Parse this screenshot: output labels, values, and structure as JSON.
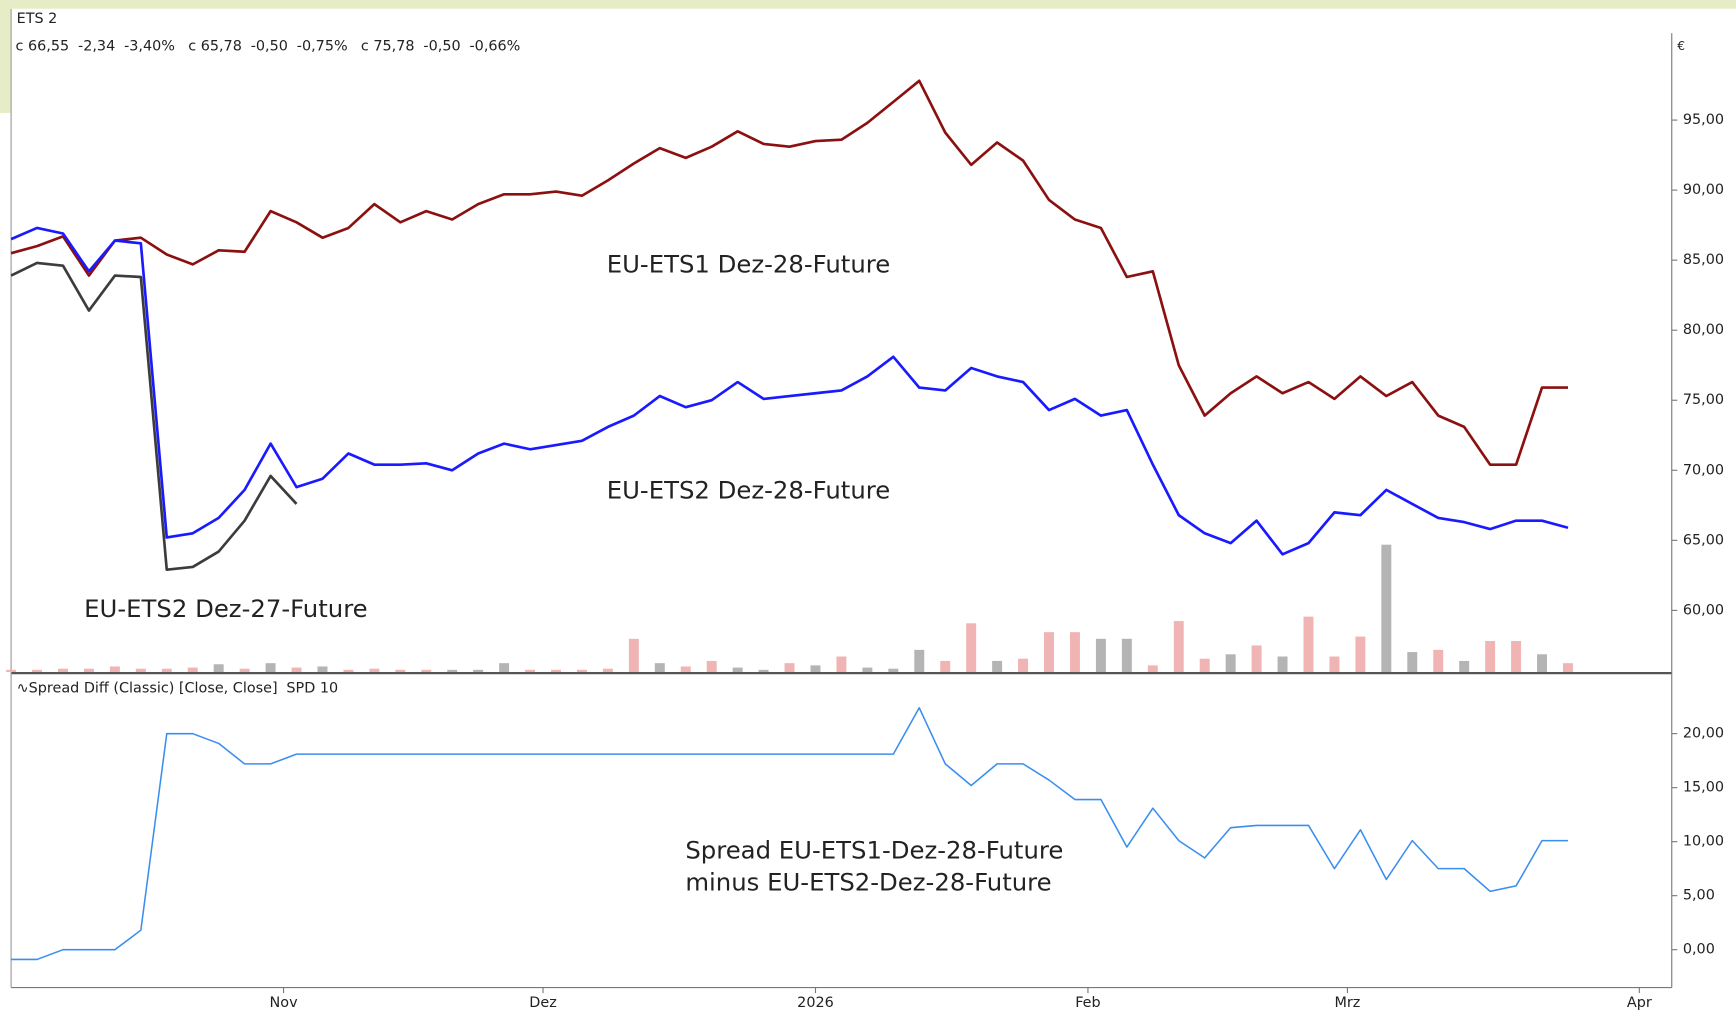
{
  "chart_data": [
    {
      "type": "line",
      "title": "ETS 2",
      "y_label": "€",
      "legend_items": [
        {
          "close": "c 66,55",
          "change": "-2,34",
          "percent": "-3,40%",
          "color": "#333333"
        },
        {
          "close": "c 65,78",
          "change": "-0,50",
          "percent": "-0,75%",
          "color": "#1a1aff"
        },
        {
          "close": "c 75,78",
          "change": "-0,50",
          "percent": "-0,66%",
          "color": "#8b1010"
        }
      ],
      "change_color": "#e02020",
      "x": [
        0,
        2,
        4,
        6,
        8,
        10,
        12,
        14,
        16,
        18,
        20,
        22,
        24,
        26,
        28,
        30,
        32,
        34,
        36,
        38,
        40,
        42,
        44,
        46,
        48,
        50,
        52,
        54,
        56,
        58,
        60,
        62,
        64,
        66,
        68,
        70,
        72,
        74,
        76,
        78,
        80,
        82,
        84,
        86,
        88,
        90,
        92,
        94,
        96,
        98,
        100,
        102,
        104,
        106,
        108,
        110,
        112,
        114,
        116,
        118,
        120
      ],
      "xlim": [
        0,
        128
      ],
      "ylim": [
        55.6,
        101.2
      ],
      "yticks": [
        {
          "value": 60,
          "label": "60,00"
        },
        {
          "value": 65,
          "label": "65,00"
        },
        {
          "value": 70,
          "label": "70,00"
        },
        {
          "value": 75,
          "label": "75,00"
        },
        {
          "value": 80,
          "label": "80,00"
        },
        {
          "value": 85,
          "label": "85,00"
        },
        {
          "value": 90,
          "label": "90,00"
        },
        {
          "value": 95,
          "label": "95,00"
        }
      ],
      "series": [
        {
          "name": "EU-ETS1 Dez-28-Future",
          "color": "#8b1010",
          "values": [
            85.5,
            86.0,
            86.7,
            83.9,
            86.4,
            86.6,
            85.4,
            84.7,
            85.7,
            85.6,
            88.5,
            87.7,
            86.6,
            87.3,
            89.0,
            87.7,
            88.5,
            87.9,
            89.0,
            89.7,
            89.7,
            89.9,
            89.6,
            90.7,
            91.9,
            93.0,
            92.3,
            93.1,
            94.2,
            93.3,
            93.1,
            93.5,
            93.6,
            94.8,
            96.3,
            97.8,
            94.1,
            91.8,
            93.4,
            92.1,
            89.3,
            87.9,
            87.3,
            83.8,
            84.2,
            77.5,
            73.9,
            75.5,
            76.7,
            75.5,
            76.3,
            75.1,
            76.7,
            75.3,
            76.3,
            73.9,
            73.1,
            70.4,
            70.4,
            75.9,
            75.9
          ]
        },
        {
          "name": "EU-ETS2 Dez-28-Future",
          "color": "#1a1aff",
          "values": [
            86.5,
            87.3,
            86.9,
            84.2,
            86.4,
            86.2,
            65.2,
            65.5,
            66.6,
            68.6,
            71.9,
            68.8,
            69.4,
            71.2,
            70.4,
            70.4,
            70.5,
            70.0,
            71.2,
            71.9,
            71.5,
            71.8,
            72.1,
            73.1,
            73.9,
            75.3,
            74.5,
            75.0,
            76.3,
            75.1,
            75.3,
            75.5,
            75.7,
            76.7,
            78.1,
            75.9,
            75.7,
            77.3,
            76.7,
            76.3,
            74.3,
            75.1,
            73.9,
            74.3,
            70.4,
            66.8,
            65.5,
            64.8,
            66.4,
            64.0,
            64.8,
            67.0,
            66.8,
            68.6,
            67.6,
            66.6,
            66.3,
            65.8,
            66.4,
            66.4,
            65.9
          ]
        },
        {
          "name": "EU-ETS2 Dez-27-Future",
          "color": "#3c3c3c",
          "values": [
            83.9,
            84.8,
            84.6,
            81.4,
            83.9,
            83.8,
            62.9,
            63.1,
            64.2,
            66.4,
            69.6,
            67.6,
            null,
            null,
            null,
            null,
            null,
            null,
            null,
            null,
            null,
            null,
            null,
            null,
            null,
            null,
            null,
            null,
            null,
            null,
            null,
            null,
            null,
            null,
            null,
            null,
            null,
            null,
            null,
            null,
            null,
            null,
            null,
            null,
            null,
            null,
            null,
            null,
            null,
            null,
            null,
            null,
            null,
            null,
            null,
            null,
            null,
            null,
            null,
            null,
            null
          ]
        }
      ],
      "volume": [
        2,
        2,
        3,
        3,
        5,
        3,
        3,
        4,
        7,
        3,
        8,
        4,
        5,
        2,
        3,
        2,
        2,
        2,
        2,
        8,
        2,
        2,
        2,
        3,
        30,
        8,
        5,
        10,
        4,
        2,
        8,
        6,
        14,
        4,
        3,
        20,
        10,
        44,
        10,
        12,
        36,
        36,
        30,
        30,
        6,
        46,
        12,
        16,
        24,
        14,
        50,
        14,
        32,
        115,
        18,
        20,
        10,
        28,
        28,
        16,
        8
      ],
      "vlim": [
        0,
        577
      ],
      "volume_colors": [
        "#f0b4b4",
        "#f0b4b4",
        "#f0b4b4",
        "#f0b4b4",
        "#f0b4b4",
        "#f0b4b4",
        "#f0b4b4",
        "#f0b4b4",
        "#b4b4b4",
        "#f0b4b4",
        "#b4b4b4",
        "#f0b4b4",
        "#b4b4b4",
        "#f0b4b4",
        "#f0b4b4",
        "#f0b4b4",
        "#f0b4b4",
        "#b4b4b4",
        "#b4b4b4",
        "#b4b4b4",
        "#f0b4b4",
        "#f0b4b4",
        "#f0b4b4",
        "#f0b4b4",
        "#f0b4b4",
        "#b4b4b4",
        "#f0b4b4",
        "#f0b4b4",
        "#b4b4b4",
        "#b4b4b4",
        "#f0b4b4",
        "#b4b4b4",
        "#f0b4b4",
        "#b4b4b4",
        "#b4b4b4",
        "#b4b4b4",
        "#f0b4b4",
        "#f0b4b4",
        "#b4b4b4",
        "#f0b4b4",
        "#f0b4b4",
        "#f0b4b4",
        "#b4b4b4",
        "#b4b4b4",
        "#f0b4b4",
        "#f0b4b4",
        "#f0b4b4",
        "#b4b4b4",
        "#f0b4b4",
        "#b4b4b4",
        "#f0b4b4",
        "#f0b4b4",
        "#f0b4b4",
        "#b4b4b4",
        "#b4b4b4",
        "#f0b4b4",
        "#b4b4b4",
        "#f0b4b4",
        "#f0b4b4",
        "#b4b4b4",
        "#f0b4b4"
      ]
    },
    {
      "type": "line",
      "title": "∿Spread Diff (Classic)  [Close, Close]",
      "subtitle": "SPD 10",
      "subtitle_color": "#1a6fe0",
      "annotation": [
        "Spread EU-ETS1-Dez-28-Future",
        "minus EU-ETS2-Dez-28-Future"
      ],
      "annotation_color": "#20b0f0",
      "x": [
        0,
        2,
        4,
        6,
        8,
        10,
        12,
        14,
        16,
        18,
        20,
        22,
        24,
        26,
        28,
        30,
        32,
        34,
        36,
        38,
        40,
        42,
        44,
        46,
        48,
        50,
        52,
        54,
        56,
        58,
        60,
        62,
        64,
        66,
        68,
        70,
        72,
        74,
        76,
        78,
        80,
        82,
        84,
        86,
        88,
        90,
        92,
        94,
        96,
        98,
        100,
        102,
        104,
        106,
        108,
        110,
        112,
        114,
        116,
        118,
        120
      ],
      "xlim": [
        0,
        128
      ],
      "xticks": [
        {
          "value": 21,
          "label": "Nov"
        },
        {
          "value": 41,
          "label": "Dez"
        },
        {
          "value": 62,
          "label": "2026"
        },
        {
          "value": 83,
          "label": "Feb"
        },
        {
          "value": 103,
          "label": "Mrz"
        },
        {
          "value": 125.5,
          "label": "Apr"
        }
      ],
      "ylim": [
        -3.3,
        25.4
      ],
      "yticks": [
        {
          "value": 0,
          "label": "0,00"
        },
        {
          "value": 5,
          "label": "5,00"
        },
        {
          "value": 10,
          "label": "10,00"
        },
        {
          "value": 15,
          "label": "15,00"
        },
        {
          "value": 20,
          "label": "20,00"
        }
      ],
      "series": [
        {
          "color": "#3a8ef0",
          "values": [
            -0.9,
            -0.9,
            0,
            0,
            0,
            1.8,
            20,
            20,
            19.1,
            17.2,
            17.2,
            18.1,
            18.1,
            18.1,
            18.1,
            18.1,
            18.1,
            18.1,
            18.1,
            18.1,
            18.1,
            18.1,
            18.1,
            18.1,
            18.1,
            18.1,
            18.1,
            18.1,
            18.1,
            18.1,
            18.1,
            18.1,
            18.1,
            18.1,
            18.1,
            22.4,
            17.2,
            15.2,
            17.2,
            17.2,
            15.7,
            13.9,
            13.9,
            9.5,
            13.1,
            10.1,
            8.5,
            11.3,
            11.5,
            11.5,
            11.5,
            7.5,
            11.1,
            6.5,
            10.1,
            7.5,
            7.5,
            5.4,
            5.9,
            10.1,
            10.1
          ]
        }
      ]
    }
  ]
}
